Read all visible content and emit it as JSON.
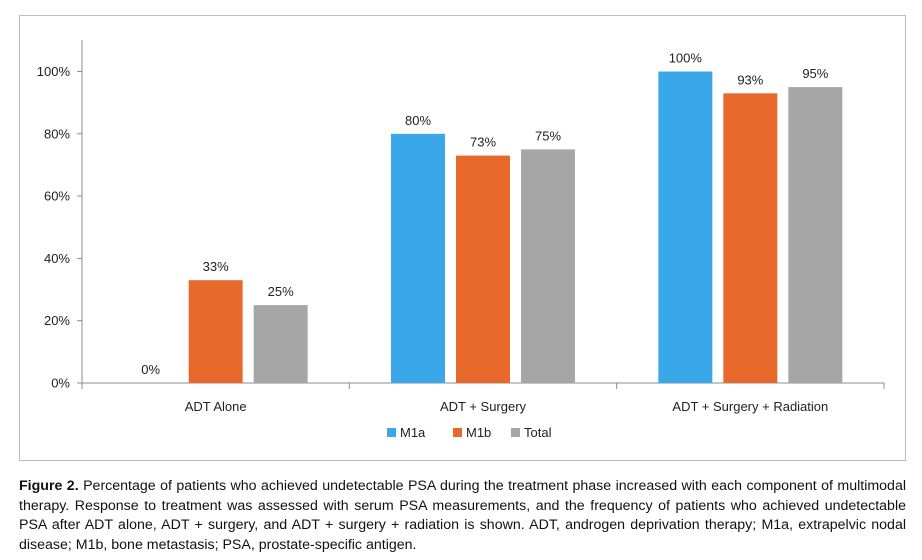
{
  "chart_data": {
    "type": "bar",
    "categories": [
      "ADT Alone",
      "ADT + Surgery",
      "ADT + Surgery + Radiation"
    ],
    "series": [
      {
        "name": "M1a",
        "values": [
          0,
          80,
          100
        ],
        "color": "#3aa8e8"
      },
      {
        "name": "M1b",
        "values": [
          33,
          73,
          93
        ],
        "color": "#e8692c"
      },
      {
        "name": "Total",
        "values": [
          25,
          75,
          95
        ],
        "color": "#a6a6a6"
      }
    ],
    "data_labels": [
      [
        "0%",
        "80%",
        "100%"
      ],
      [
        "33%",
        "73%",
        "93%"
      ],
      [
        "25%",
        "75%",
        "95%"
      ]
    ],
    "yticks": [
      0,
      20,
      40,
      60,
      80,
      100
    ],
    "ytick_labels": [
      "0%",
      "20%",
      "40%",
      "60%",
      "80%",
      "100%"
    ],
    "ylim": [
      0,
      110
    ],
    "grid": false,
    "legend_position": "bottom-center"
  },
  "caption": {
    "lead": "Figure 2.",
    "text": " Percentage of patients who achieved undetectable PSA during the treatment phase increased with each component of multimodal therapy. Response to treatment was assessed with serum PSA measurements, and the frequency of patients who achieved undetectable PSA after ADT alone, ADT + surgery, and ADT + surgery + radiation is shown. ADT, androgen deprivation therapy; M1a, extrapelvic nodal disease; M1b, bone metastasis; PSA, prostate-specific antigen."
  }
}
